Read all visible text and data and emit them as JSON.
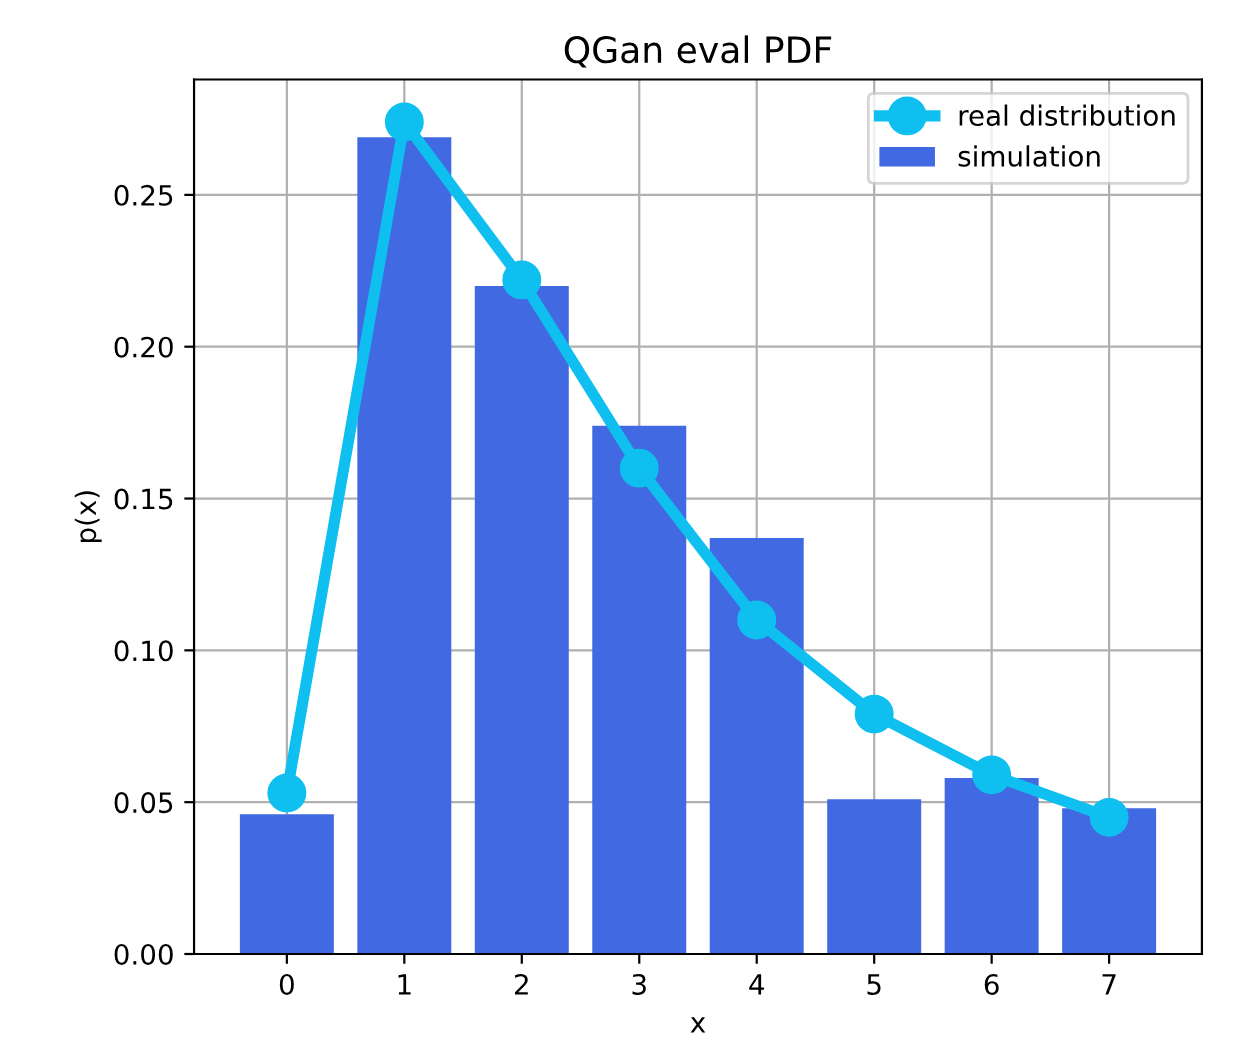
{
  "chart_data": {
    "type": "bar",
    "title": "QGan eval PDF",
    "xlabel": "x",
    "ylabel": "p(x)",
    "x": [
      0,
      1,
      2,
      3,
      4,
      5,
      6,
      7
    ],
    "series": [
      {
        "name": "real distribution",
        "type": "line",
        "color": "#0fbfef",
        "marker": "circle",
        "values": [
          0.053,
          0.274,
          0.222,
          0.16,
          0.11,
          0.079,
          0.059,
          0.045
        ]
      },
      {
        "name": "simulation",
        "color": "#4169e1",
        "values": [
          0.046,
          0.269,
          0.22,
          0.174,
          0.137,
          0.051,
          0.058,
          0.048
        ]
      }
    ],
    "xlim": [
      -0.79,
      7.79
    ],
    "ylim": [
      0,
      0.288
    ],
    "xticks": [
      0,
      1,
      2,
      3,
      4,
      5,
      6,
      7
    ],
    "yticks": [
      {
        "value": 0,
        "label": "0.00"
      },
      {
        "value": 0.05,
        "label": "0.05"
      },
      {
        "value": 0.1,
        "label": "0.10"
      },
      {
        "value": 0.15,
        "label": "0.15"
      },
      {
        "value": 0.2,
        "label": "0.20"
      },
      {
        "value": 0.25,
        "label": "0.25"
      }
    ],
    "grid": true,
    "legend": "top right"
  }
}
